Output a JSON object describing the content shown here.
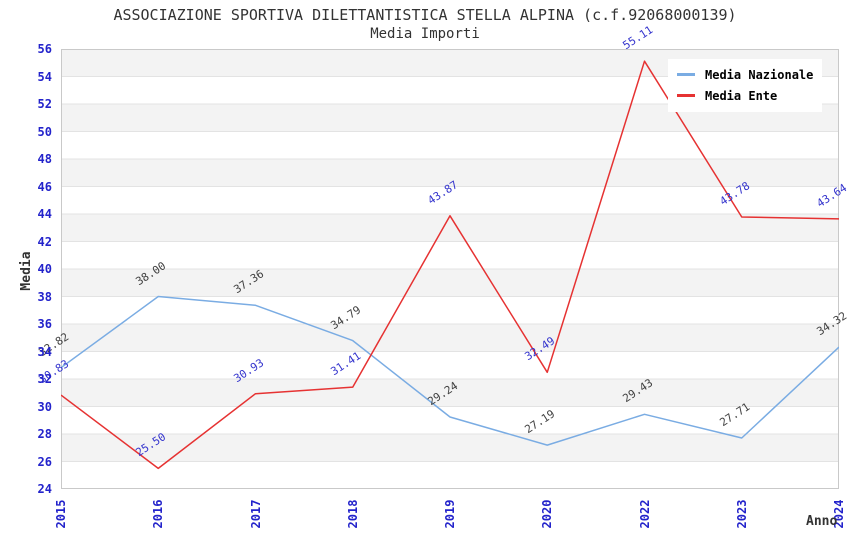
{
  "chart_data": {
    "type": "line",
    "title": "ASSOCIAZIONE SPORTIVA DILETTANTISTICA STELLA ALPINA (c.f.92068000139)",
    "subtitle": "Media Importi",
    "xlabel": "Anno",
    "ylabel": "Media",
    "ylim": [
      24,
      56
    ],
    "ytick_step": 2,
    "grid": true,
    "legend_position": "top-right",
    "categories": [
      "2015",
      "2016",
      "2017",
      "2018",
      "2019",
      "2020",
      "2022",
      "2023",
      "2024"
    ],
    "series": [
      {
        "name": "Media Nazionale",
        "color": "#7aace3",
        "label_color": "#404040",
        "values": [
          32.82,
          38.0,
          37.36,
          34.79,
          29.24,
          27.19,
          29.43,
          27.71,
          34.32
        ]
      },
      {
        "name": "Media Ente",
        "color": "#e63232",
        "label_color": "#3434cd",
        "values": [
          30.83,
          25.5,
          30.93,
          31.41,
          43.87,
          32.49,
          55.11,
          43.78,
          43.64
        ]
      }
    ]
  },
  "colors": {
    "axis_text": "#2323cb",
    "band_gray": "#f3f3f3",
    "gridline": "#e3e3e3",
    "plot_border": "#c9c9c9",
    "title_text": "#333333"
  }
}
